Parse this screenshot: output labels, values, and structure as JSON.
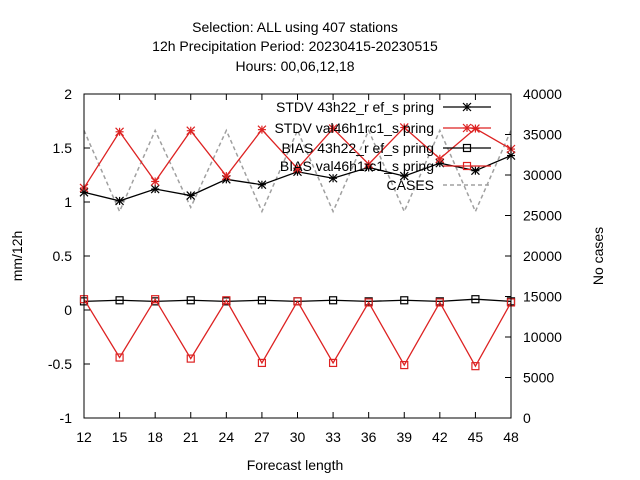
{
  "chart_data": {
    "type": "line",
    "title_lines": [
      "Selection: ALL using   407 stations",
      "12h Precipitation   Period: 20230415-20230515",
      "Hours:  00,06,12,18"
    ],
    "xlabel": "Forecast length",
    "ylabel": "mm/12h",
    "y2label": "No cases",
    "xlim": [
      12,
      48
    ],
    "ylim": [
      -1,
      2
    ],
    "y2lim": [
      0,
      40000
    ],
    "x": [
      12,
      15,
      18,
      21,
      24,
      27,
      30,
      33,
      36,
      39,
      42,
      45,
      48
    ],
    "x_ticks": [
      "12",
      "15",
      "18",
      "21",
      "24",
      "27",
      "30",
      "33",
      "36",
      "39",
      "42",
      "45",
      "48"
    ],
    "y_ticks": [
      "-1",
      "-0.5",
      "0",
      "0.5",
      "1",
      "1.5",
      "2"
    ],
    "y2_ticks": [
      "0",
      "5000",
      "10000",
      "15000",
      "20000",
      "25000",
      "30000",
      "35000",
      "40000"
    ],
    "grid": false,
    "legend_position": "top-right",
    "series": [
      {
        "name": "STDV 43h22_ref_spring",
        "name_display": "STDV 43h22_r ef_s pring",
        "color": "#000000",
        "marker": "star",
        "axis": "left",
        "dash": "solid",
        "values": [
          1.09,
          1.01,
          1.12,
          1.06,
          1.21,
          1.16,
          1.28,
          1.22,
          1.32,
          1.24,
          1.36,
          1.29,
          1.43
        ]
      },
      {
        "name": "STDV val46h1rc1_spring",
        "name_display": "STDV val46h1rc1_s pring",
        "color": "#dd2222",
        "marker": "star",
        "axis": "left",
        "dash": "solid",
        "values": [
          1.13,
          1.65,
          1.19,
          1.66,
          1.24,
          1.67,
          1.31,
          1.68,
          1.35,
          1.69,
          1.4,
          1.68,
          1.49
        ]
      },
      {
        "name": "BIAS 43h22_ref_spring",
        "name_display": "BIAS 43h22_r ef_s pring",
        "color": "#000000",
        "marker": "square",
        "axis": "left",
        "dash": "solid",
        "values": [
          0.08,
          0.09,
          0.08,
          0.09,
          0.08,
          0.09,
          0.08,
          0.09,
          0.08,
          0.09,
          0.08,
          0.1,
          0.08
        ]
      },
      {
        "name": "BIAS val46h1rc1_spring",
        "name_display": "BIAS val46h1rc1_s pring",
        "color": "#dd2222",
        "marker": "square",
        "axis": "left",
        "dash": "solid",
        "values": [
          0.1,
          -0.44,
          0.1,
          -0.45,
          0.09,
          -0.49,
          0.08,
          -0.49,
          0.07,
          -0.51,
          0.07,
          -0.52,
          0.07
        ]
      },
      {
        "name": "CASES",
        "name_display": "CASES",
        "color": "#a0a0a0",
        "marker": "none",
        "axis": "right",
        "dash": "dashed",
        "values": [
          35500,
          25500,
          35500,
          26000,
          35500,
          25500,
          35500,
          25500,
          35500,
          25500,
          35500,
          25500,
          35500
        ]
      }
    ]
  }
}
